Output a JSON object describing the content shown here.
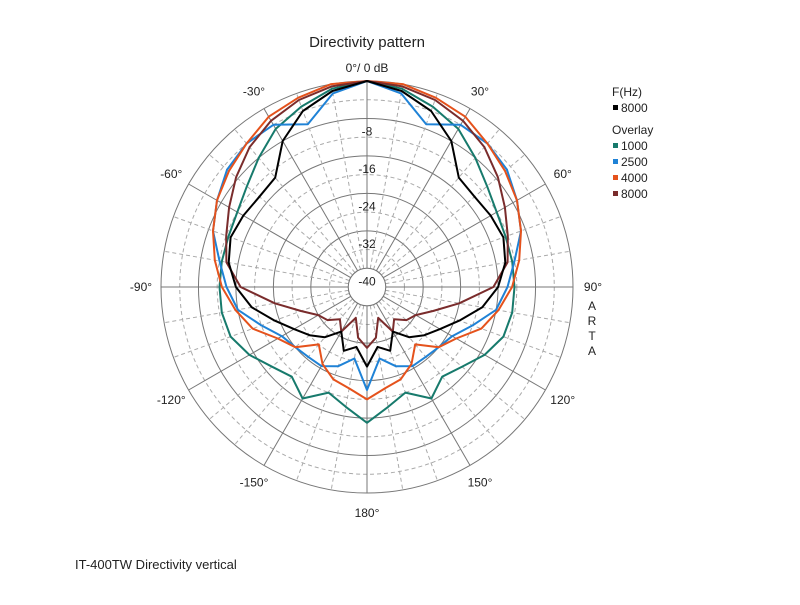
{
  "chart_data": {
    "type": "polar-line",
    "title": "Directivity pattern",
    "top_label": "0°/ 0 dB",
    "radial_unit": "dB",
    "rlim": [
      -44,
      0
    ],
    "ring_labels": [
      "-8",
      "-16",
      "-24",
      "-32",
      "-40"
    ],
    "ring_values": [
      -8,
      -16,
      -24,
      -32,
      -40
    ],
    "angle_labels": [
      {
        "angle": 30,
        "text": "30°"
      },
      {
        "angle": 60,
        "text": "60°"
      },
      {
        "angle": 90,
        "text": "90°"
      },
      {
        "angle": 120,
        "text": "120°"
      },
      {
        "angle": 150,
        "text": "150°"
      },
      {
        "angle": 180,
        "text": "180°"
      },
      {
        "angle": -150,
        "text": "-150°"
      },
      {
        "angle": -120,
        "text": "-120°"
      },
      {
        "angle": -90,
        "text": "-90°"
      },
      {
        "angle": -60,
        "text": "-60°"
      },
      {
        "angle": -30,
        "text": "-30°"
      }
    ],
    "grid": true,
    "symmetric": true,
    "angles": [
      0,
      10,
      20,
      30,
      40,
      50,
      60,
      70,
      80,
      90,
      100,
      110,
      120,
      130,
      140,
      150,
      160,
      170,
      180
    ],
    "legend": {
      "placement": "right",
      "group1_title": "F(Hz)",
      "group2_title": "Overlay"
    },
    "series": [
      {
        "name": "1000",
        "group": "Overlay",
        "color": "#177a6c",
        "values": [
          0,
          -1,
          -3,
          -5,
          -8,
          -10.5,
          -12,
          -12.5,
          -12.5,
          -12.5,
          -12.5,
          -13,
          -15,
          -17.5,
          -19,
          -16.5,
          -20,
          -18,
          -15
        ]
      },
      {
        "name": "2500",
        "group": "Overlay",
        "color": "#1f82d6",
        "values": [
          0,
          -2,
          -7,
          -4,
          -4,
          -5,
          -7,
          -9,
          -12,
          -14,
          -16,
          -20,
          -23,
          -24,
          -24.5,
          -24.5,
          -26,
          -28.5,
          -22
        ]
      },
      {
        "name": "4000",
        "group": "Overlay",
        "color": "#e5521c",
        "values": [
          0,
          0,
          -1,
          -2,
          -4,
          -5.5,
          -7,
          -9,
          -11,
          -13,
          -15.5,
          -18,
          -22,
          -24,
          -28,
          -25,
          -23,
          -22,
          -20
        ]
      },
      {
        "name": "8000",
        "group": "Overlay",
        "color": "#7a2c2c",
        "values": [
          0,
          -0.5,
          -1.5,
          -3,
          -5,
          -7.5,
          -10,
          -12,
          -13.5,
          -17,
          -24,
          -29,
          -32,
          -33,
          -35,
          -33,
          -37,
          -33,
          -31
        ]
      },
      {
        "name": "8000",
        "group": "F(Hz)",
        "color": "#000000",
        "values": [
          0,
          -1.5,
          -4,
          -8,
          -13.5,
          -14,
          -13.5,
          -13,
          -14,
          -16,
          -19,
          -23,
          -26,
          -28,
          -30,
          -33,
          -29.5,
          -31,
          -27
        ]
      }
    ]
  },
  "side_label": [
    "A",
    "R",
    "T",
    "A"
  ],
  "footer": "IT-400TW Directivity vertical"
}
